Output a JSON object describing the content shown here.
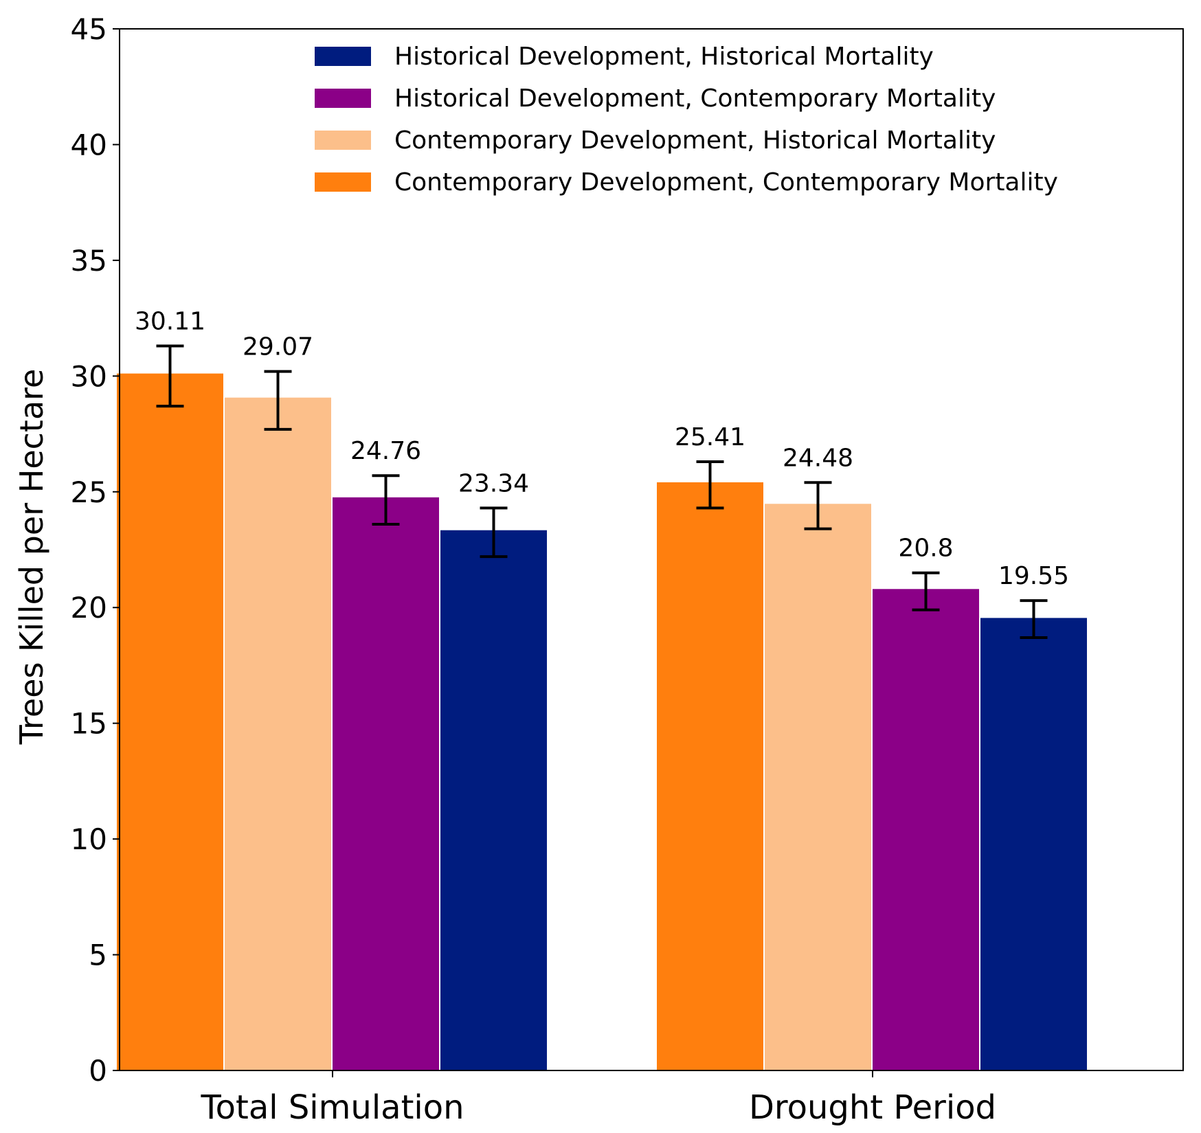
{
  "chart_data": {
    "type": "bar",
    "title": "",
    "xlabel": "",
    "ylabel": "Trees Killed per Hectare",
    "ylim": [
      0,
      45
    ],
    "yticks": [
      0,
      5,
      10,
      15,
      20,
      25,
      30,
      35,
      40,
      45
    ],
    "grid": false,
    "legend_position": "top-right",
    "categories": [
      "Total Simulation",
      "Drought Period"
    ],
    "series": [
      {
        "name": "Contemporary Development, Contemporary Mortality",
        "color": "#FF7F0E",
        "values": [
          30.11,
          25.41
        ],
        "value_labels": [
          "30.11",
          "25.41"
        ],
        "error_low": [
          28.7,
          24.3
        ],
        "error_high": [
          31.3,
          26.3
        ]
      },
      {
        "name": "Contemporary Development, Historical Mortality",
        "color": "#FCBF8A",
        "values": [
          29.07,
          24.48
        ],
        "value_labels": [
          "29.07",
          "24.48"
        ],
        "error_low": [
          27.7,
          23.4
        ],
        "error_high": [
          30.2,
          25.4
        ]
      },
      {
        "name": "Historical Development, Contemporary Mortality",
        "color": "#8B0087",
        "values": [
          24.76,
          20.8
        ],
        "value_labels": [
          "24.76",
          "20.8"
        ],
        "error_low": [
          23.6,
          19.9
        ],
        "error_high": [
          25.7,
          21.5
        ]
      },
      {
        "name": "Historical Development, Historical Mortality",
        "color": "#001C7F",
        "values": [
          23.34,
          19.55
        ],
        "value_labels": [
          "23.34",
          "19.55"
        ],
        "error_low": [
          22.2,
          18.7
        ],
        "error_high": [
          24.3,
          20.3
        ]
      }
    ],
    "legend_order": [
      "Historical Development, Historical Mortality",
      "Historical Development, Contemporary Mortality",
      "Contemporary Development, Historical Mortality",
      "Contemporary Development, Contemporary Mortality"
    ]
  }
}
